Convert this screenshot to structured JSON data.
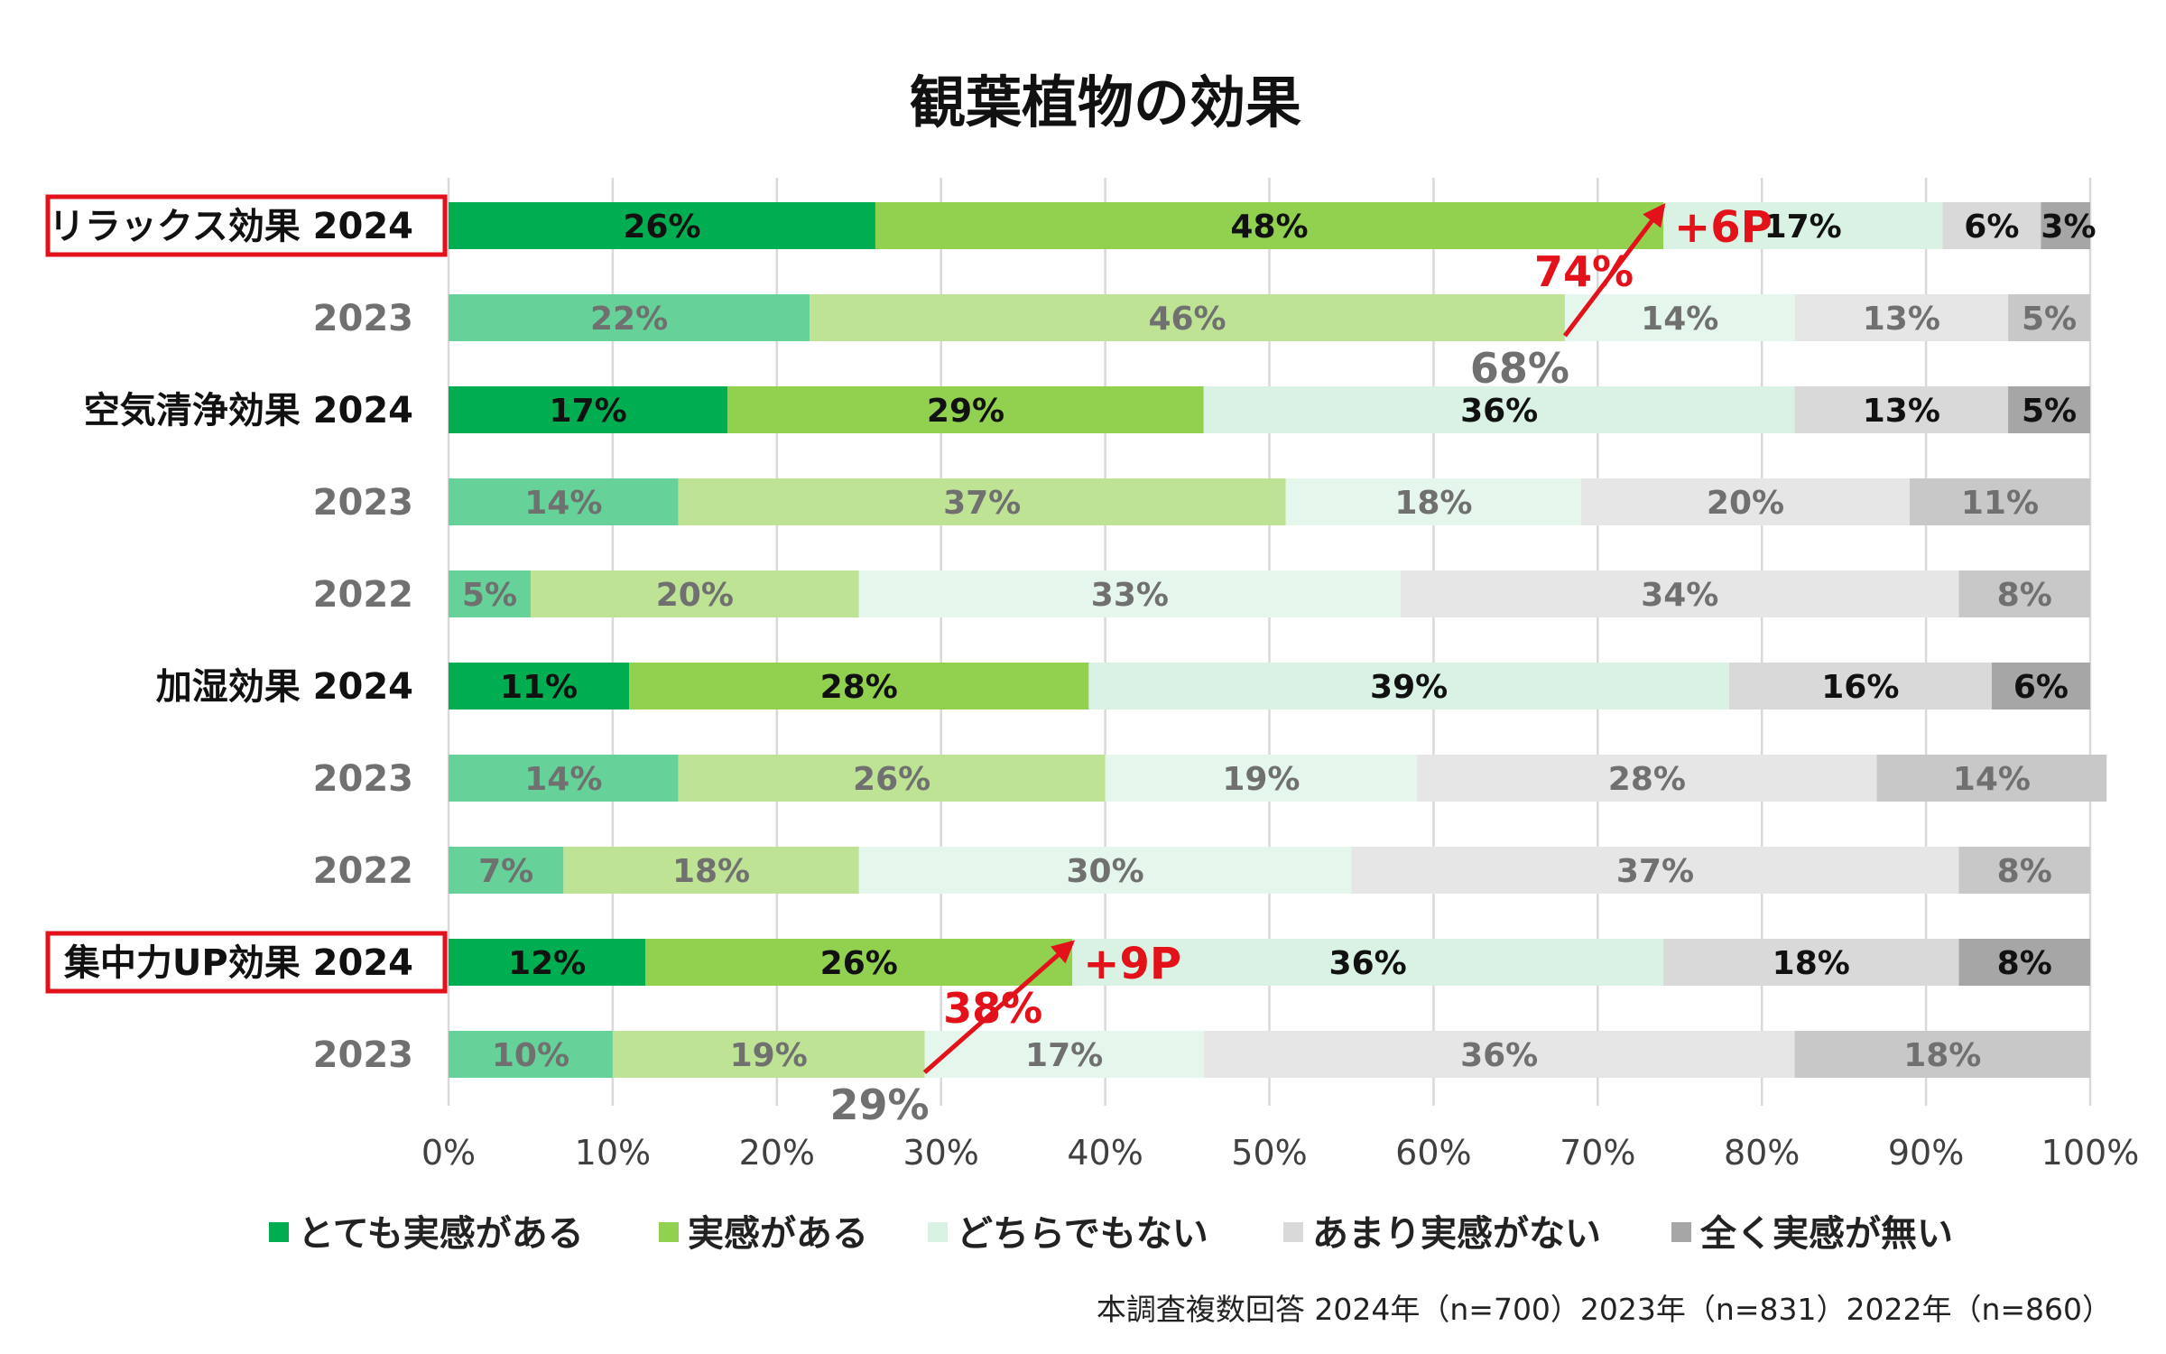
{
  "chart_data": {
    "type": "bar",
    "orientation": "horizontal",
    "stacked": true,
    "title": "観葉植物の効果",
    "xlim": [
      0,
      100
    ],
    "x_ticks": [
      "0%",
      "10%",
      "20%",
      "30%",
      "40%",
      "50%",
      "60%",
      "70%",
      "80%",
      "90%",
      "100%"
    ],
    "grid": true,
    "legend_position": "bottom",
    "legend": [
      {
        "key": "very",
        "label": "とても実感がある"
      },
      {
        "key": "some",
        "label": "実感がある"
      },
      {
        "key": "neutral",
        "label": "どちらでもない"
      },
      {
        "key": "little",
        "label": "あまり実感がない"
      },
      {
        "key": "none",
        "label": "全く実感が無い"
      }
    ],
    "colors": {
      "latest": [
        "#00AD50",
        "#92D050",
        "#D9F2E4",
        "#D9D9D9",
        "#A6A6A6"
      ],
      "past": [
        "#66D199",
        "#BEE395",
        "#E5F6EC",
        "#E6E6E6",
        "#C8C8C8"
      ],
      "latest_text": "#111111",
      "past_text": "#707070",
      "highlight": "#E3111A"
    },
    "rows": [
      {
        "label": "リラックス効果 2024",
        "year": "2024",
        "latest": true,
        "highlight": true,
        "values": [
          26,
          48,
          17,
          6,
          3
        ]
      },
      {
        "label": "2023",
        "year": "2023",
        "latest": false,
        "highlight": false,
        "values": [
          22,
          46,
          14,
          13,
          5
        ]
      },
      {
        "label": "空気清浄効果 2024",
        "year": "2024",
        "latest": true,
        "highlight": false,
        "values": [
          17,
          29,
          36,
          13,
          5
        ]
      },
      {
        "label": "2023",
        "year": "2023",
        "latest": false,
        "highlight": false,
        "values": [
          14,
          37,
          18,
          20,
          11
        ]
      },
      {
        "label": "2022",
        "year": "2022",
        "latest": false,
        "highlight": false,
        "values": [
          5,
          20,
          33,
          34,
          8
        ]
      },
      {
        "label": "加湿効果 2024",
        "year": "2024",
        "latest": true,
        "highlight": false,
        "values": [
          11,
          28,
          39,
          16,
          6
        ]
      },
      {
        "label": "2023",
        "year": "2023",
        "latest": false,
        "highlight": false,
        "values": [
          14,
          26,
          19,
          28,
          14
        ]
      },
      {
        "label": "2022",
        "year": "2022",
        "latest": false,
        "highlight": false,
        "values": [
          7,
          18,
          30,
          37,
          8
        ]
      },
      {
        "label": "集中力UP効果 2024",
        "year": "2024",
        "latest": true,
        "highlight": true,
        "values": [
          12,
          26,
          36,
          18,
          8
        ]
      },
      {
        "label": "2023",
        "year": "2023",
        "latest": false,
        "highlight": false,
        "values": [
          10,
          19,
          17,
          36,
          18
        ]
      }
    ],
    "annotations": [
      {
        "from_row": 1,
        "to_row": 0,
        "from_value": 68,
        "to_value": 74,
        "from_label": "68%",
        "to_label": "74%",
        "delta_label": "+6P"
      },
      {
        "from_row": 9,
        "to_row": 8,
        "from_value": 29,
        "to_value": 38,
        "from_label": "29%",
        "to_label": "38%",
        "delta_label": "+9P"
      }
    ]
  },
  "footnote": "本調査複数回答  2024年（n=700）2023年（n=831）2022年（n=860）"
}
